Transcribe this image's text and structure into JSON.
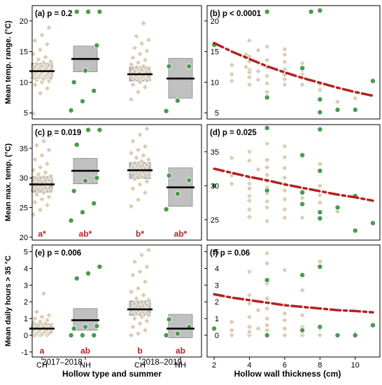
{
  "chart_data": [
    {
      "panel": "a",
      "type": "scatter",
      "tag": "(a)",
      "p_text": "p = 0.2",
      "ylabel": "Mean temp. range. (°C)",
      "ylim": [
        4,
        22.5
      ],
      "yticks": [
        5,
        10,
        15,
        20
      ],
      "groups": [
        {
          "label": "CH",
          "type": "CH",
          "mean": 11.8,
          "q1": 10.6,
          "q3": 13.1,
          "values": [
            4.9,
            8.2,
            9.0,
            9.6,
            10.0,
            10.2,
            10.4,
            10.5,
            10.7,
            10.8,
            11.0,
            11.1,
            11.2,
            11.3,
            11.4,
            11.5,
            11.6,
            11.7,
            11.8,
            11.9,
            12.0,
            12.1,
            12.2,
            12.3,
            12.4,
            12.5,
            12.6,
            12.8,
            13.0,
            13.2,
            13.4,
            13.7,
            14.1,
            14.6,
            15.3,
            16.2,
            16.8,
            17.7,
            18.9
          ]
        },
        {
          "label": "NH",
          "type": "NH",
          "mean": 13.8,
          "q1": 11.7,
          "q3": 15.9,
          "values": [
            5.4,
            6.9,
            8.6,
            10.0,
            11.9,
            16.0,
            21.5,
            21.5,
            21.5
          ]
        },
        {
          "label": "CH",
          "type": "CH",
          "mean": 11.3,
          "q1": 10.2,
          "q3": 12.5,
          "values": [
            7.2,
            8.4,
            9.2,
            9.6,
            10.0,
            10.3,
            10.5,
            10.7,
            10.9,
            11.0,
            11.1,
            11.2,
            11.3,
            11.4,
            11.5,
            11.6,
            11.7,
            11.8,
            12.0,
            12.2,
            12.4,
            12.6,
            12.9,
            13.2,
            13.6,
            14.0,
            14.6,
            15.1,
            15.6,
            16.3,
            16.9,
            17.5,
            19.6
          ]
        },
        {
          "label": "NH",
          "type": "NH",
          "mean": 10.6,
          "q1": 7.4,
          "q3": 13.9,
          "values": [
            5.3,
            7.0,
            12.6,
            12.6
          ]
        }
      ],
      "letters": []
    },
    {
      "panel": "b",
      "type": "scatter",
      "tag": "(b)",
      "p_text": "p < 0.0001",
      "ylim": [
        4,
        22.5
      ],
      "yticks": [
        5,
        10,
        15,
        20
      ],
      "points_ch": [
        [
          3,
          11.3
        ],
        [
          3,
          10.2
        ],
        [
          3,
          12.8
        ],
        [
          3.8,
          12.5
        ],
        [
          3.8,
          14.5
        ],
        [
          4,
          16.8
        ],
        [
          4,
          13.4
        ],
        [
          4,
          10.8
        ],
        [
          4,
          9.6
        ],
        [
          4,
          12.0
        ],
        [
          4,
          14.2
        ],
        [
          4,
          11.6
        ],
        [
          4.5,
          15.2
        ],
        [
          4.5,
          10.4
        ],
        [
          4.5,
          11.8
        ],
        [
          5,
          12.4
        ],
        [
          5,
          9.8
        ],
        [
          5,
          8.4
        ],
        [
          5,
          11.0
        ],
        [
          5,
          13.6
        ],
        [
          5,
          15.8
        ],
        [
          5,
          7.8
        ],
        [
          6,
          15.4
        ],
        [
          6,
          12.1
        ],
        [
          6,
          10.5
        ],
        [
          6,
          9.6
        ],
        [
          6,
          11.2
        ],
        [
          6,
          13.3
        ],
        [
          6,
          14.5
        ],
        [
          7,
          12.5
        ],
        [
          7,
          11.3
        ],
        [
          7,
          13.1
        ],
        [
          7,
          9.6
        ],
        [
          7,
          10.8
        ],
        [
          7,
          12.0
        ],
        [
          8,
          8.7
        ],
        [
          8,
          9.7
        ],
        [
          9,
          6.8
        ],
        [
          10,
          7.4
        ]
      ],
      "points_nh": [
        [
          2,
          16.1
        ],
        [
          5,
          21.5
        ],
        [
          5,
          7.5
        ],
        [
          7,
          12.3
        ],
        [
          7.5,
          21.5
        ],
        [
          8,
          21.7
        ],
        [
          8,
          5.1
        ],
        [
          8,
          7.2
        ],
        [
          9,
          5.5
        ],
        [
          10,
          5.5
        ],
        [
          11,
          10.2
        ]
      ],
      "trend": [
        [
          2,
          16.4
        ],
        [
          3,
          15.0
        ],
        [
          4,
          13.8
        ],
        [
          5,
          12.6
        ],
        [
          6,
          11.6
        ],
        [
          7,
          10.7
        ],
        [
          8,
          9.9
        ],
        [
          9,
          9.1
        ],
        [
          10,
          8.4
        ],
        [
          11,
          7.8
        ]
      ],
      "xlim": [
        1.6,
        11.4
      ],
      "xticks": [
        2,
        4,
        6,
        8,
        10
      ]
    },
    {
      "panel": "c",
      "type": "scatter",
      "tag": "(c)",
      "p_text": "p = 0.019",
      "ylabel": "Mean max. temp. (°C)",
      "ylim": [
        19.5,
        39
      ],
      "yticks": [
        20,
        25,
        30,
        35
      ],
      "groups": [
        {
          "label": "CH",
          "type": "CH",
          "mean": 28.9,
          "q1": 27.6,
          "q3": 30.2,
          "values": [
            23.8,
            24.6,
            25.4,
            25.9,
            26.4,
            26.8,
            27.2,
            27.5,
            27.8,
            28.1,
            28.3,
            28.5,
            28.7,
            28.9,
            29.1,
            29.3,
            29.6,
            29.9,
            30.1,
            30.3,
            30.6,
            30.9,
            31.3,
            31.8,
            32.4,
            33.1,
            33.8,
            34.7,
            35.5,
            36.2,
            37.2
          ]
        },
        {
          "label": "NH",
          "type": "NH",
          "mean": 31.2,
          "q1": 29.0,
          "q3": 33.3,
          "values": [
            22.8,
            24.2,
            25.7,
            27.8,
            29.5,
            30.0,
            35.6,
            38.1,
            38.1
          ]
        },
        {
          "label": "CH",
          "type": "CH",
          "mean": 31.3,
          "q1": 29.9,
          "q3": 32.6,
          "values": [
            25.2,
            26.3,
            27.5,
            28.2,
            28.9,
            29.4,
            29.8,
            30.2,
            30.5,
            30.8,
            31.0,
            31.2,
            31.4,
            31.6,
            31.8,
            32.0,
            32.2,
            32.5,
            32.8,
            33.1,
            33.4,
            33.8,
            34.2,
            34.7,
            35.3,
            36.2,
            37.3,
            38.3
          ]
        },
        {
          "label": "NH",
          "type": "NH",
          "mean": 28.4,
          "q1": 25.2,
          "q3": 31.7,
          "values": [
            24.7,
            27.3,
            29.6,
            30.4
          ]
        }
      ],
      "letters": [
        "a*",
        "ab*",
        "b*",
        "ab*"
      ]
    },
    {
      "panel": "d",
      "type": "scatter",
      "tag": "(d)",
      "p_text": "p = 0.025",
      "ylim": [
        22,
        39
      ],
      "yticks": [
        25,
        30,
        35
      ],
      "points_ch": [
        [
          3,
          30.3
        ],
        [
          3,
          31.5
        ],
        [
          3,
          34.1
        ],
        [
          4,
          33.7
        ],
        [
          4,
          31.2
        ],
        [
          4,
          30.3
        ],
        [
          4,
          29.6
        ],
        [
          4,
          28.5
        ],
        [
          4,
          27.8
        ],
        [
          4,
          26.5
        ],
        [
          4,
          25.4
        ],
        [
          4,
          35.0
        ],
        [
          4.5,
          32.4
        ],
        [
          5,
          36.2
        ],
        [
          5,
          33.8
        ],
        [
          5,
          32.7
        ],
        [
          5,
          31.6
        ],
        [
          5,
          30.7
        ],
        [
          5,
          29.7
        ],
        [
          5,
          28.9
        ],
        [
          5,
          27.7
        ],
        [
          5,
          26.8
        ],
        [
          5,
          24.8
        ],
        [
          6,
          35.8
        ],
        [
          6,
          34.2
        ],
        [
          6,
          32.6
        ],
        [
          6,
          31.2
        ],
        [
          6,
          30.2
        ],
        [
          6,
          29.3
        ],
        [
          6,
          28.0
        ],
        [
          6,
          26.5
        ],
        [
          6,
          25.3
        ],
        [
          7,
          29.3
        ],
        [
          7,
          28.2
        ],
        [
          7,
          27.3
        ],
        [
          7,
          25.3
        ],
        [
          8,
          33.2
        ],
        [
          8,
          30.0
        ],
        [
          8,
          28.6
        ],
        [
          8,
          27.5
        ],
        [
          9,
          26.2
        ]
      ],
      "points_nh": [
        [
          2,
          30.0
        ],
        [
          5,
          38.5
        ],
        [
          5,
          29.3
        ],
        [
          7,
          34.5
        ],
        [
          7,
          29.0
        ],
        [
          7,
          27.3
        ],
        [
          8,
          38.3
        ],
        [
          8,
          32.2
        ],
        [
          8,
          26.1
        ],
        [
          8,
          25.2
        ],
        [
          9,
          26.8
        ],
        [
          10,
          28.5
        ],
        [
          10,
          23.4
        ],
        [
          11,
          24.5
        ]
      ],
      "trend": [
        [
          2,
          32.5
        ],
        [
          3,
          31.9
        ],
        [
          4,
          31.3
        ],
        [
          5,
          30.8
        ],
        [
          6,
          30.2
        ],
        [
          7,
          29.7
        ],
        [
          8,
          29.2
        ],
        [
          9,
          28.7
        ],
        [
          10,
          28.3
        ],
        [
          11,
          27.8
        ]
      ],
      "xlim": [
        1.6,
        11.4
      ],
      "xticks": [
        2,
        4,
        6,
        8,
        10
      ]
    },
    {
      "panel": "e",
      "type": "scatter",
      "tag": "(e)",
      "p_text": "p = 0.006",
      "ylabel": "Mean daily hours > 35 °C",
      "ylim": [
        -1.3,
        5.4
      ],
      "yticks": [
        -1,
        0,
        1,
        2,
        3,
        4,
        5
      ],
      "groups": [
        {
          "label": "CH",
          "type": "CH",
          "mean": 0.4,
          "q1": 0.12,
          "q3": 0.7,
          "values": [
            0.0,
            0.0,
            0.0,
            0.0,
            0.05,
            0.1,
            0.1,
            0.15,
            0.2,
            0.2,
            0.25,
            0.3,
            0.3,
            0.35,
            0.4,
            0.4,
            0.45,
            0.5,
            0.5,
            0.55,
            0.6,
            0.7,
            0.75,
            0.8,
            0.9,
            1.0,
            1.1,
            1.2,
            1.4,
            2.5
          ]
        },
        {
          "label": "NH",
          "type": "NH",
          "mean": 0.9,
          "q1": 0.3,
          "q3": 1.6,
          "values": [
            0.0,
            0.0,
            0.0,
            0.4,
            0.5,
            0.55,
            3.4,
            3.7,
            4.1
          ]
        },
        {
          "label": "CH",
          "type": "CH",
          "mean": 1.55,
          "q1": 1.2,
          "q3": 2.05,
          "values": [
            0.0,
            0.1,
            0.3,
            0.5,
            0.7,
            0.85,
            1.0,
            1.1,
            1.2,
            1.3,
            1.4,
            1.45,
            1.5,
            1.55,
            1.6,
            1.7,
            1.8,
            1.9,
            2.0,
            2.1,
            2.2,
            2.4,
            2.6,
            2.8,
            3.2,
            3.6,
            3.8,
            4.1,
            4.4,
            4.8,
            5.1
          ]
        },
        {
          "label": "NH",
          "type": "NH",
          "mean": 0.4,
          "q1": -0.15,
          "q3": 1.25,
          "values": [
            0.0,
            0.1,
            0.5,
            0.95
          ]
        }
      ],
      "letters": [
        "a",
        "ab",
        "b",
        "ab"
      ]
    },
    {
      "panel": "f",
      "type": "scatter",
      "tag": "(f)",
      "p_text": "p = 0.06",
      "ylim": [
        -1.3,
        5.4
      ],
      "yticks": [
        0,
        1,
        2,
        3,
        4,
        5
      ],
      "points_ch": [
        [
          3,
          0.0
        ],
        [
          3,
          0.3
        ],
        [
          3,
          0.8
        ],
        [
          4,
          0.0
        ],
        [
          4,
          0.2
        ],
        [
          4,
          0.5
        ],
        [
          4,
          1.1
        ],
        [
          4,
          1.9
        ],
        [
          4,
          2.4
        ],
        [
          4,
          3.8
        ],
        [
          4.5,
          0.4
        ],
        [
          4.5,
          1.5
        ],
        [
          5,
          0.0
        ],
        [
          5,
          0.3
        ],
        [
          5,
          0.6
        ],
        [
          5,
          1.0
        ],
        [
          5,
          1.6
        ],
        [
          5,
          2.2
        ],
        [
          5,
          3.1
        ],
        [
          5,
          4.3
        ],
        [
          5,
          4.9
        ],
        [
          6,
          0.0
        ],
        [
          6,
          0.4
        ],
        [
          6,
          0.9
        ],
        [
          6,
          1.3
        ],
        [
          6,
          1.8
        ],
        [
          6,
          3.9
        ],
        [
          7,
          0.0
        ],
        [
          7,
          0.2
        ],
        [
          7,
          0.5
        ],
        [
          7,
          1.2
        ],
        [
          7,
          2.7
        ],
        [
          8,
          0.0
        ],
        [
          8,
          0.4
        ],
        [
          8,
          4.4
        ],
        [
          9,
          0.0
        ],
        [
          10,
          0.1
        ]
      ],
      "points_nh": [
        [
          2,
          0.4
        ],
        [
          5,
          3.3
        ],
        [
          5,
          0.0
        ],
        [
          7,
          3.6
        ],
        [
          7,
          0.3
        ],
        [
          8,
          4.1
        ],
        [
          8,
          0.5
        ],
        [
          9,
          0.0
        ],
        [
          10,
          0.0
        ],
        [
          11,
          0.6
        ]
      ],
      "trend": [
        [
          2,
          2.45
        ],
        [
          3,
          2.25
        ],
        [
          4,
          2.1
        ],
        [
          5,
          1.95
        ],
        [
          6,
          1.8
        ],
        [
          7,
          1.7
        ],
        [
          8,
          1.6
        ],
        [
          9,
          1.5
        ],
        [
          10,
          1.45
        ],
        [
          11,
          1.37
        ]
      ],
      "xlim": [
        1.6,
        11.4
      ],
      "xticks": [
        2,
        4,
        6,
        8,
        10
      ]
    }
  ],
  "x_categories": {
    "group_labels": [
      "CH",
      "NH",
      "CH",
      "NH"
    ],
    "years": [
      "2017–2018",
      "2018–2019"
    ]
  },
  "axis_titles": {
    "left_x": "Hollow type and summer",
    "right_x": "Hollow wall thickness (cm)"
  },
  "colors": {
    "ch_points": "#d8c8aa",
    "ch_stroke": "#ffffff",
    "nh_points": "#4a9b4f",
    "nh_stroke": "#ffffff",
    "box_fill": "#c0c0c0",
    "box_stroke": "#888888",
    "mean_line": "#000000",
    "trend_line": "#b22222",
    "letters": "#b22222",
    "panel_border": "#000000"
  }
}
